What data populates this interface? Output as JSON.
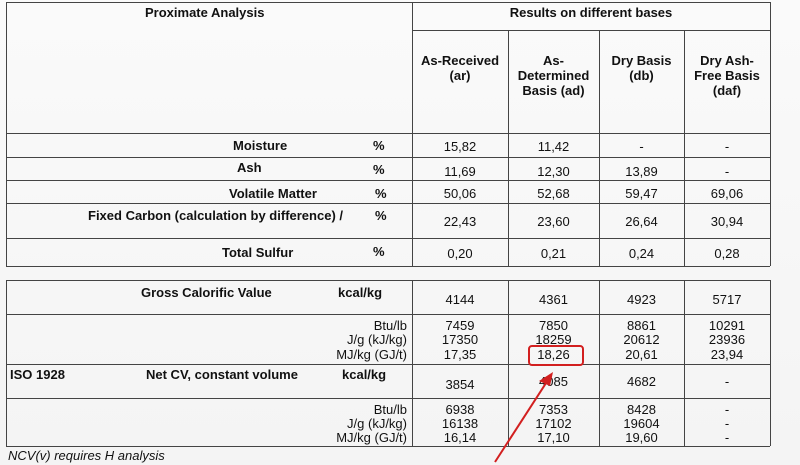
{
  "header": {
    "col1": "Proximate Analysis",
    "col2": "Results on different bases",
    "bases": [
      {
        "l1": "As-Received",
        "l2": "(ar)",
        "l3": ""
      },
      {
        "l1": "As-",
        "l2": "Determined",
        "l3": "Basis (ad)"
      },
      {
        "l1": "Dry Basis",
        "l2": "(db)",
        "l3": ""
      },
      {
        "l1": "Dry Ash-",
        "l2": "Free Basis",
        "l3": "(daf)"
      }
    ]
  },
  "proximate": [
    {
      "label": "Moisture",
      "unit": "%",
      "ar": "15,82",
      "ad": "11,42",
      "db": "-",
      "daf": "-"
    },
    {
      "label": "Ash",
      "unit": "%",
      "ar": "11,69",
      "ad": "12,30",
      "db": "13,89",
      "daf": "-"
    },
    {
      "label": "Volatile Matter",
      "unit": "%",
      "ar": "50,06",
      "ad": "52,68",
      "db": "59,47",
      "daf": "69,06"
    },
    {
      "label": "Fixed Carbon (calculation by difference) /",
      "unit": "%",
      "ar": "22,43",
      "ad": "23,60",
      "db": "26,64",
      "daf": "30,94"
    },
    {
      "label": "Total Sulfur",
      "unit": "%",
      "ar": "0,20",
      "ad": "0,21",
      "db": "0,24",
      "daf": "0,28"
    }
  ],
  "gcv": {
    "label": "Gross Calorific Value",
    "unit": "kcal/kg",
    "values": [
      "4144",
      "4361",
      "4923",
      "5717"
    ],
    "sub": [
      {
        "unit": "Btu/lb",
        "values": [
          "7459",
          "7850",
          "8861",
          "10291"
        ]
      },
      {
        "unit": "J/g (kJ/kg)",
        "values": [
          "17350",
          "18259",
          "20612",
          "23936"
        ]
      },
      {
        "unit": "MJ/kg (GJ/t)",
        "values": [
          "17,35",
          "18,26",
          "20,61",
          "23,94"
        ]
      }
    ]
  },
  "ncv": {
    "standard": "ISO 1928",
    "label": "Net CV, constant volume",
    "unit": "kcal/kg",
    "values": [
      "3854",
      "4085",
      "4682",
      "-"
    ],
    "sub": [
      {
        "unit": "Btu/lb",
        "values": [
          "6938",
          "7353",
          "8428",
          "-"
        ]
      },
      {
        "unit": "J/g (kJ/kg)",
        "values": [
          "16138",
          "17102",
          "19604",
          "-"
        ]
      },
      {
        "unit": "MJ/kg (GJ/t)",
        "values": [
          "16,14",
          "17,10",
          "19,60",
          "-"
        ]
      }
    ]
  },
  "footnote": "NCV(v) requires H analysis",
  "annotation": {
    "highlight_color": "#d21f1f"
  }
}
